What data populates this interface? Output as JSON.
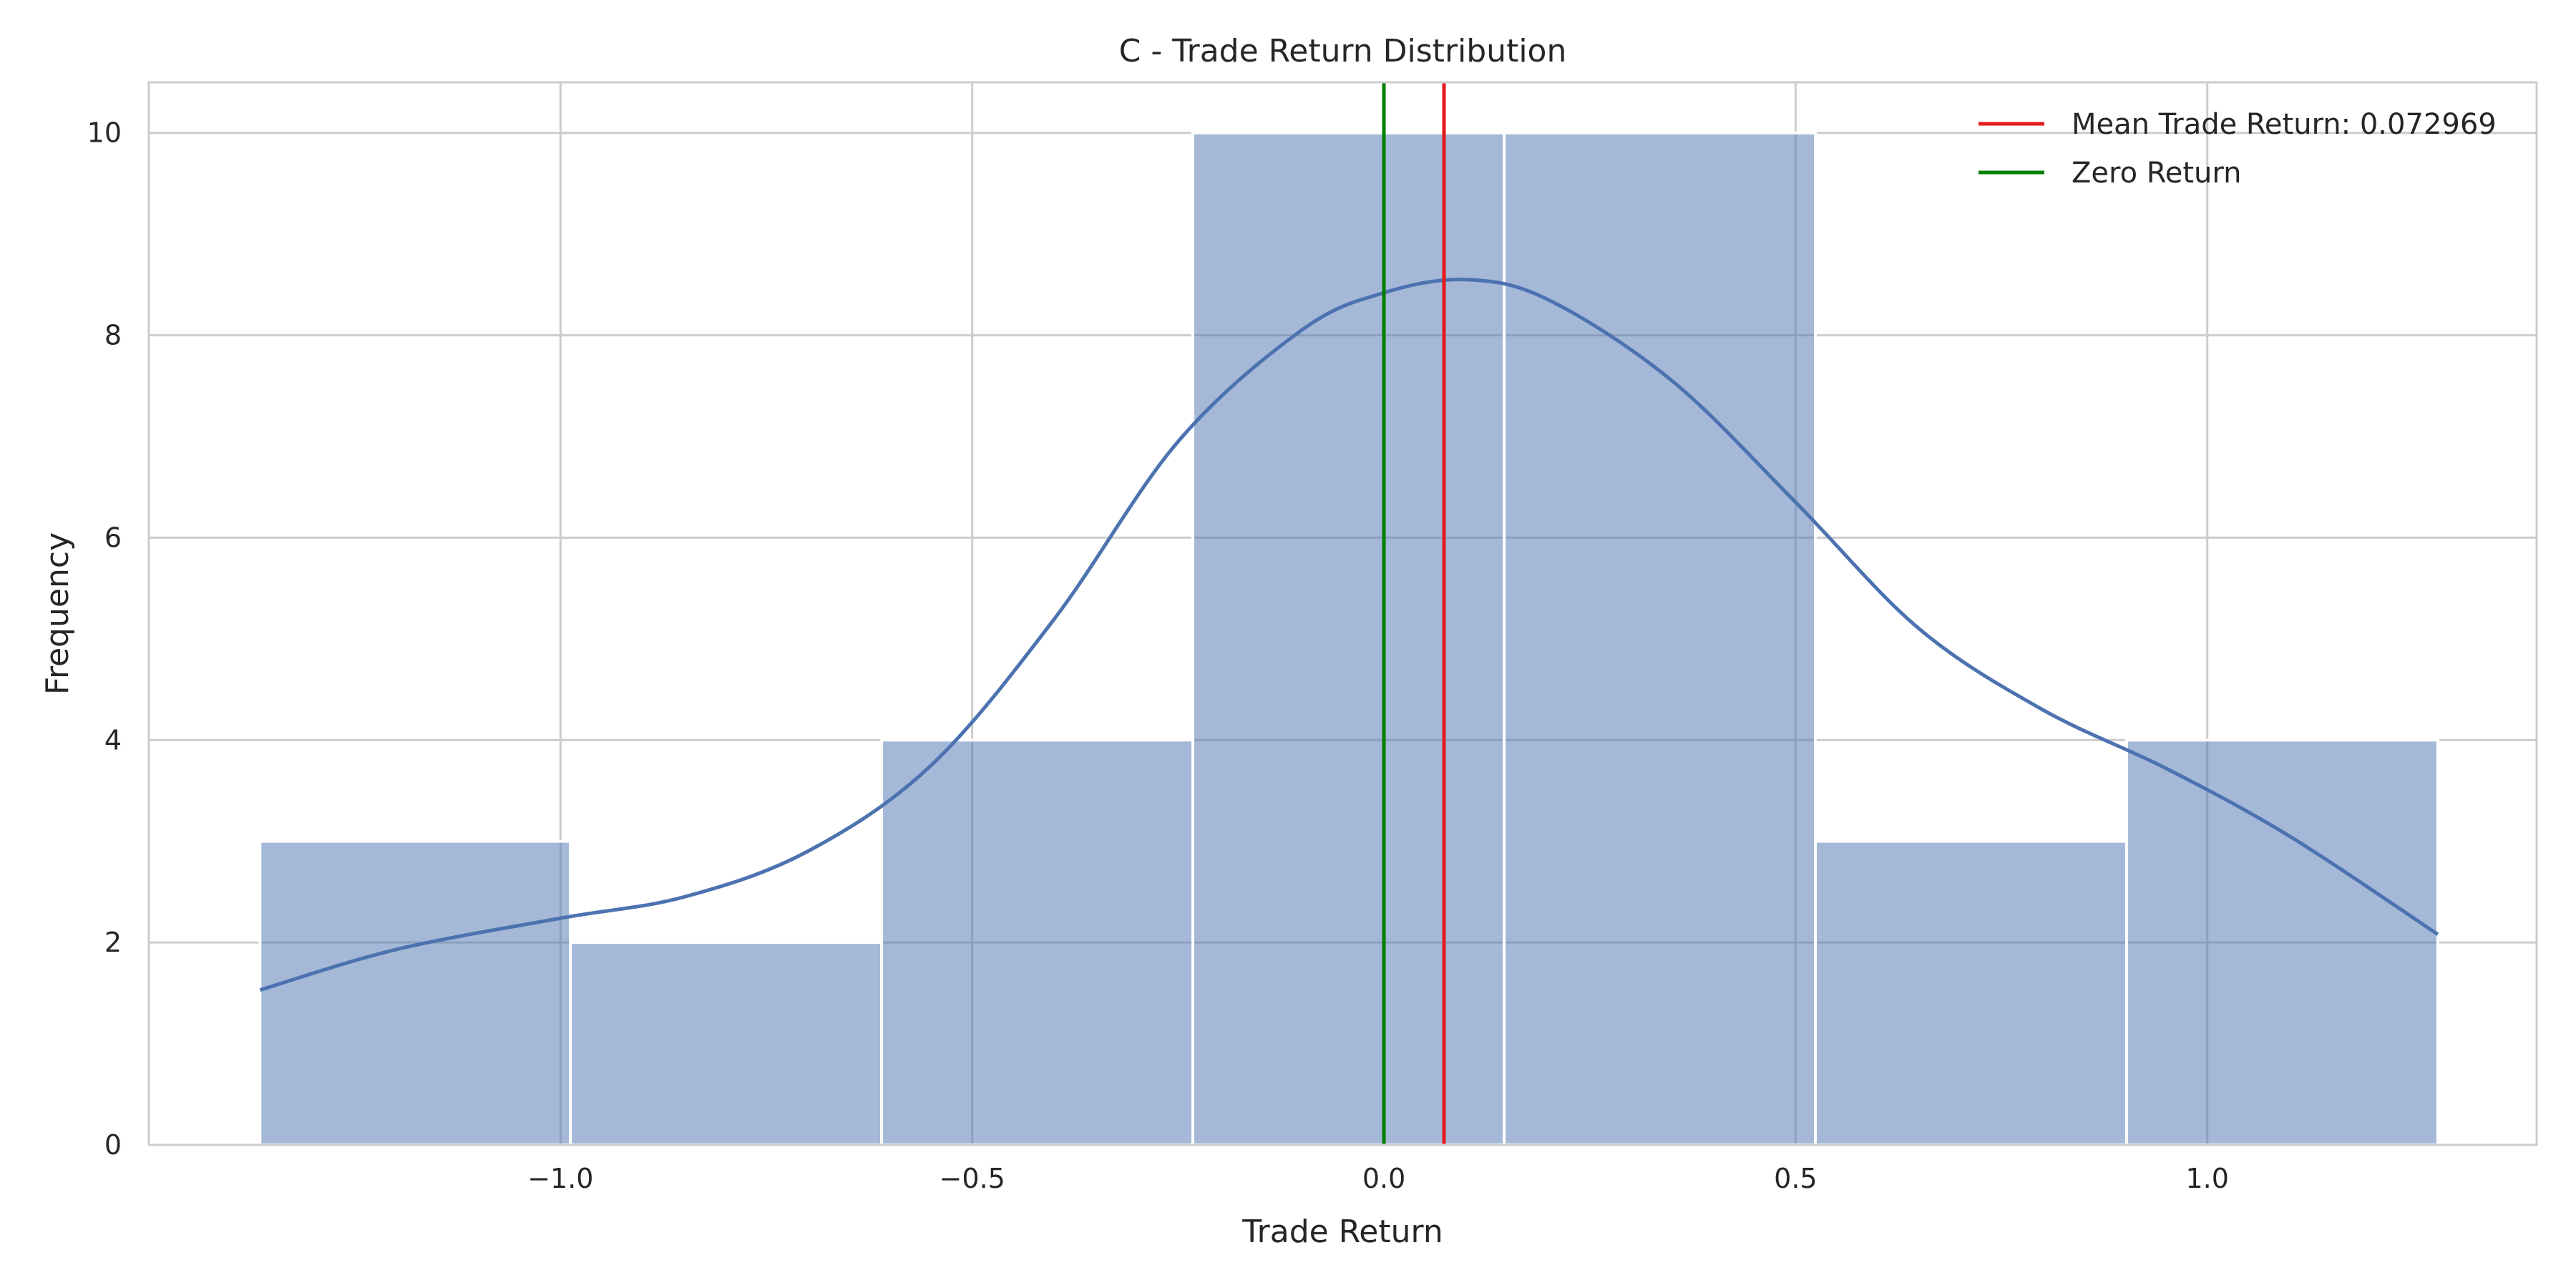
{
  "chart_data": {
    "type": "bar",
    "title": "C - Trade Return Distribution",
    "xlabel": "Trade Return",
    "ylabel": "Frequency",
    "xlim": [
      -1.5,
      1.4
    ],
    "ylim": [
      0,
      10.5
    ],
    "xticks": [
      -1.0,
      -0.5,
      0.0,
      0.5,
      1.0
    ],
    "xtick_labels": [
      "−1.0",
      "−0.5",
      "0.0",
      "0.5",
      "1.0"
    ],
    "yticks": [
      0,
      2,
      4,
      6,
      8,
      10
    ],
    "ytick_labels": [
      "0",
      "2",
      "4",
      "6",
      "8",
      "10"
    ],
    "grid": true,
    "legend_position": "top-right",
    "bins": [
      {
        "x0": -1.365,
        "x1": -0.988,
        "count": 3
      },
      {
        "x0": -0.988,
        "x1": -0.61,
        "count": 2
      },
      {
        "x0": -0.61,
        "x1": -0.232,
        "count": 4
      },
      {
        "x0": -0.232,
        "x1": 0.146,
        "count": 10
      },
      {
        "x0": 0.146,
        "x1": 0.524,
        "count": 10
      },
      {
        "x0": 0.524,
        "x1": 0.902,
        "count": 3
      },
      {
        "x0": 0.902,
        "x1": 1.28,
        "count": 4
      }
    ],
    "bar_color": "#4c72b0",
    "kde": {
      "name": "",
      "color": "#4c72b0",
      "x": [
        -1.365,
        -1.2,
        -1.0,
        -0.85,
        -0.7,
        -0.55,
        -0.4,
        -0.25,
        -0.1,
        0.0,
        0.1,
        0.2,
        0.35,
        0.5,
        0.65,
        0.8,
        0.95,
        1.1,
        1.28
      ],
      "y": [
        1.53,
        1.93,
        2.24,
        2.45,
        2.9,
        3.75,
        5.2,
        6.95,
        8.05,
        8.42,
        8.55,
        8.35,
        7.55,
        6.35,
        5.1,
        4.3,
        3.72,
        3.05,
        2.08
      ]
    },
    "vlines": [
      {
        "name": "Mean Trade Return: 0.072969",
        "x": 0.072969,
        "color": "#e41a1c"
      },
      {
        "name": "Zero Return",
        "x": 0.0,
        "color": "#008000"
      }
    ]
  }
}
